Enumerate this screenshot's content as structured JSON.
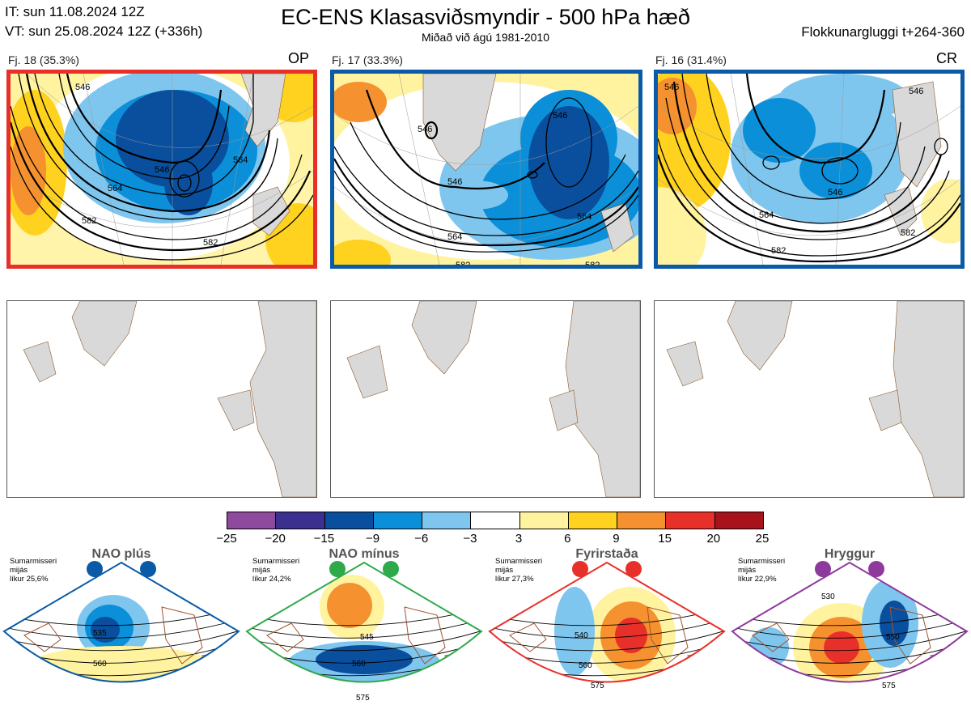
{
  "header": {
    "it_line": "IT: sun 11.08.2024 12Z",
    "vt_line": "VT: sun 25.08.2024 12Z  (+336h)",
    "title": "EC-ENS Klasasviðsmyndir - 500 hPa hæð",
    "subtitle": "Miðað við ágú 1981-2010",
    "window": "Flokkunargluggi t+264-360"
  },
  "clusters": [
    {
      "label": "Fj. 18 (35.3%)",
      "tag": "OP",
      "border_color": "#e8302a",
      "contour_labels": [
        "546",
        "546",
        "564",
        "564",
        "582",
        "582"
      ]
    },
    {
      "label": "Fj. 17 (33.3%)",
      "tag": "",
      "border_color": "#0a5aa8",
      "contour_labels": [
        "546",
        "546",
        "546",
        "564",
        "564",
        "582",
        "582"
      ]
    },
    {
      "label": "Fj. 16 (31.4%)",
      "tag": "CR",
      "border_color": "#0a5aa8",
      "contour_labels": [
        "546",
        "546",
        "546",
        "564",
        "582",
        "582"
      ]
    }
  ],
  "colorbar": {
    "ticks": [
      "−25",
      "−20",
      "−15",
      "−9",
      "−6",
      "−3",
      "3",
      "6",
      "9",
      "15",
      "20",
      "25"
    ],
    "colors": [
      "#8e4a9c",
      "#3b2f8f",
      "#0a4f9e",
      "#0a8fd8",
      "#7fc6ef",
      "#ffffff",
      "#fff3a0",
      "#ffd21f",
      "#f5922f",
      "#e8302a",
      "#a8121a"
    ]
  },
  "regimes": [
    {
      "name": "NAO plús",
      "info": [
        "Sumarmisseri",
        "mijás",
        "líkur 25,6%"
      ],
      "color": "#0a5aa8",
      "contour_labels": [
        "535",
        "560"
      ]
    },
    {
      "name": "NAO mínus",
      "info": [
        "Sumarmisseri",
        "mijás",
        "líkur 24,2%"
      ],
      "color": "#2eaa4a",
      "contour_labels": [
        "545",
        "560",
        "575"
      ]
    },
    {
      "name": "Fyrirstaða",
      "info": [
        "Sumarmisseri",
        "mijás",
        "líkur 27,3%"
      ],
      "color": "#e8302a",
      "contour_labels": [
        "540",
        "560",
        "575"
      ]
    },
    {
      "name": "Hryggur",
      "info": [
        "Sumarmisseri",
        "mijás",
        "líkur 22,9%"
      ],
      "color": "#8e3a9c",
      "contour_labels": [
        "530",
        "550",
        "575"
      ]
    }
  ]
}
